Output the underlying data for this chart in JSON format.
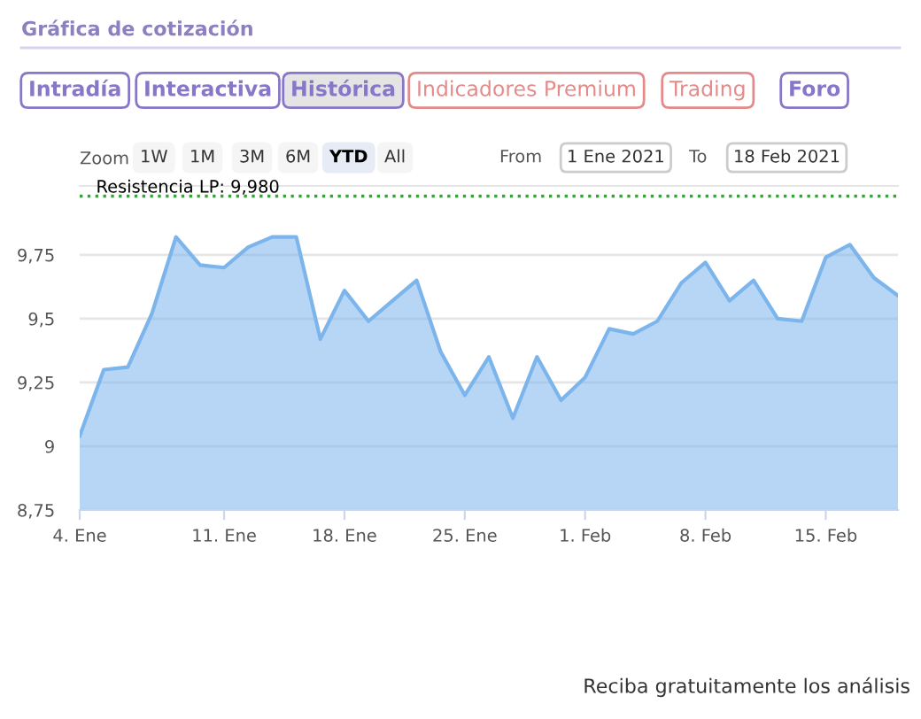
{
  "chart_data": {
    "type": "area",
    "title": "Gráfica de cotización",
    "categories": [
      "4. Ene",
      null,
      null,
      null,
      null,
      null,
      "11. Ene",
      null,
      null,
      null,
      null,
      "18. Ene",
      null,
      null,
      null,
      null,
      "25. Ene",
      null,
      null,
      null,
      null,
      "1. Feb",
      null,
      null,
      null,
      null,
      "8. Feb",
      null,
      null,
      null,
      null,
      "15. Feb",
      null,
      null,
      null
    ],
    "series": [
      {
        "color": "#7cb5ec",
        "values": [
          9.04,
          9.3,
          9.31,
          9.52,
          9.82,
          9.71,
          9.7,
          9.78,
          9.82,
          9.82,
          9.42,
          9.61,
          9.49,
          9.57,
          9.65,
          9.37,
          9.2,
          9.35,
          9.11,
          9.35,
          9.18,
          9.27,
          9.46,
          9.44,
          9.49,
          9.64,
          9.72,
          9.57,
          9.65,
          9.5,
          9.49,
          9.74,
          9.79,
          9.66,
          9.59
        ]
      }
    ],
    "ylim": [
      8.75,
      10.02
    ],
    "yticks": [
      {
        "value": 8.75,
        "label": "8,75"
      },
      9,
      {
        "value": 9.25,
        "label": "9,25"
      },
      {
        "value": 9.5,
        "label": "9,5"
      },
      {
        "value": 9.75,
        "label": "9,75"
      }
    ],
    "grid": "y",
    "marker": "none",
    "line_style": "solid",
    "ref_lines": [
      {
        "axis": "y",
        "value": 9.98,
        "label": "Resistencia LP: 9,980",
        "color": "#3ca03c",
        "line_style": "dotted"
      }
    ],
    "annotations": [
      "Intradía",
      "Interactiva",
      "Histórica",
      "Indicadores Premium",
      "Trading",
      "Foro",
      "Zoom",
      "1W",
      "1M",
      "3M",
      "6M",
      "YTD",
      "All",
      "From",
      "1 Ene 2021",
      "To",
      "18 Feb 2021",
      "Reciba gratuitamente los análisis"
    ]
  }
}
